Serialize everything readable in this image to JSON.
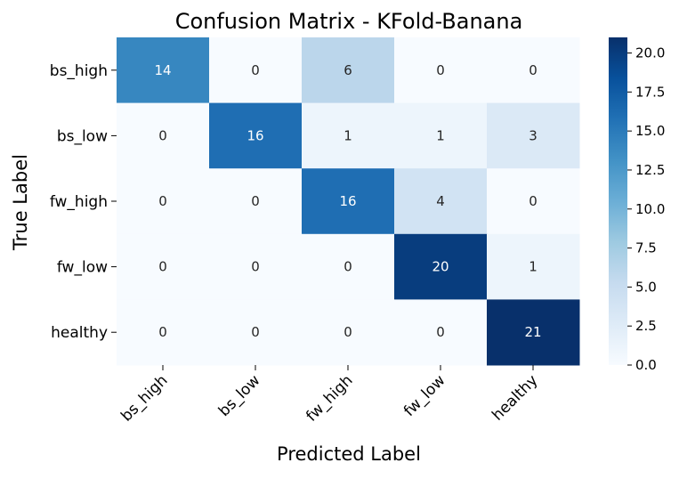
{
  "chart_data": {
    "type": "heatmap",
    "title": "Confusion Matrix - KFold-Banana",
    "xlabel": "Predicted Label",
    "ylabel": "True Label",
    "x_categories": [
      "bs_high",
      "bs_low",
      "fw_high",
      "fw_low",
      "healthy"
    ],
    "y_categories": [
      "bs_high",
      "bs_low",
      "fw_high",
      "fw_low",
      "healthy"
    ],
    "values": [
      [
        14,
        0,
        6,
        0,
        0
      ],
      [
        0,
        16,
        1,
        1,
        3
      ],
      [
        0,
        0,
        16,
        4,
        0
      ],
      [
        0,
        0,
        0,
        20,
        1
      ],
      [
        0,
        0,
        0,
        0,
        21
      ]
    ],
    "colorbar": {
      "colormap": "Blues",
      "range": [
        0,
        21
      ],
      "ticks": [
        0.0,
        2.5,
        5.0,
        7.5,
        10.0,
        12.5,
        15.0,
        17.5,
        20.0
      ],
      "tick_labels": [
        "0.0",
        "2.5",
        "5.0",
        "7.5",
        "10.0",
        "12.5",
        "15.0",
        "17.5",
        "20.0"
      ]
    },
    "colors": {
      "annotation_light": "#ffffff",
      "annotation_dark": "#262626"
    }
  }
}
